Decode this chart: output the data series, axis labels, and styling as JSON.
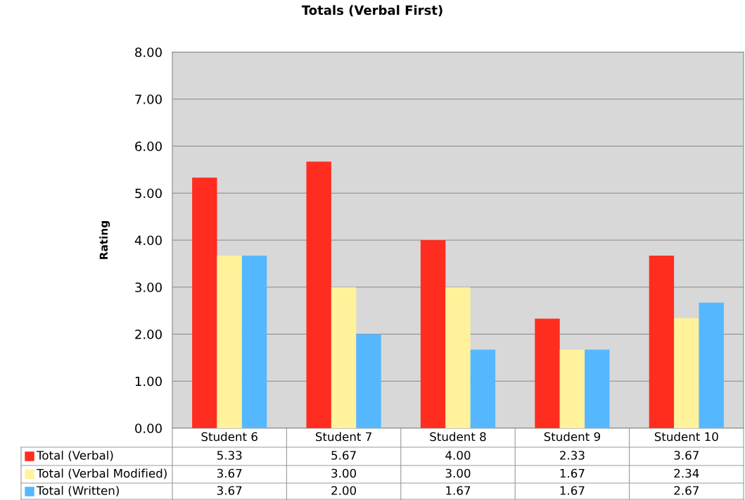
{
  "chart_data": {
    "type": "bar",
    "title": "Totals (Verbal First)",
    "ylabel": "Rating",
    "categories": [
      "Student 6",
      "Student 7",
      "Student 8",
      "Student 9",
      "Student 10"
    ],
    "series": [
      {
        "name": "Total (Verbal)",
        "color": "#ff2d1f",
        "values": [
          5.33,
          5.67,
          4.0,
          2.33,
          3.67
        ],
        "value_labels": [
          "5.33",
          "5.67",
          "4.00",
          "2.33",
          "3.67"
        ]
      },
      {
        "name": "Total (Verbal Modified)",
        "color": "#fff29a",
        "values": [
          3.67,
          3.0,
          3.0,
          1.67,
          2.34
        ],
        "value_labels": [
          "3.67",
          "3.00",
          "3.00",
          "1.67",
          "2.34"
        ]
      },
      {
        "name": "Total (Written)",
        "color": "#55b8ff",
        "values": [
          3.67,
          2.0,
          1.67,
          1.67,
          2.67
        ],
        "value_labels": [
          "3.67",
          "2.00",
          "1.67",
          "1.67",
          "2.67"
        ]
      }
    ],
    "ylim": [
      0,
      8
    ],
    "yticks": [
      {
        "value": 0,
        "label": "0.00"
      },
      {
        "value": 1,
        "label": "1.00"
      },
      {
        "value": 2,
        "label": "2.00"
      },
      {
        "value": 3,
        "label": "3.00"
      },
      {
        "value": 4,
        "label": "4.00"
      },
      {
        "value": 5,
        "label": "5.00"
      },
      {
        "value": 6,
        "label": "6.00"
      },
      {
        "value": 7,
        "label": "7.00"
      },
      {
        "value": 8,
        "label": "8.00"
      }
    ],
    "grid": "y",
    "legend": "bottom"
  }
}
